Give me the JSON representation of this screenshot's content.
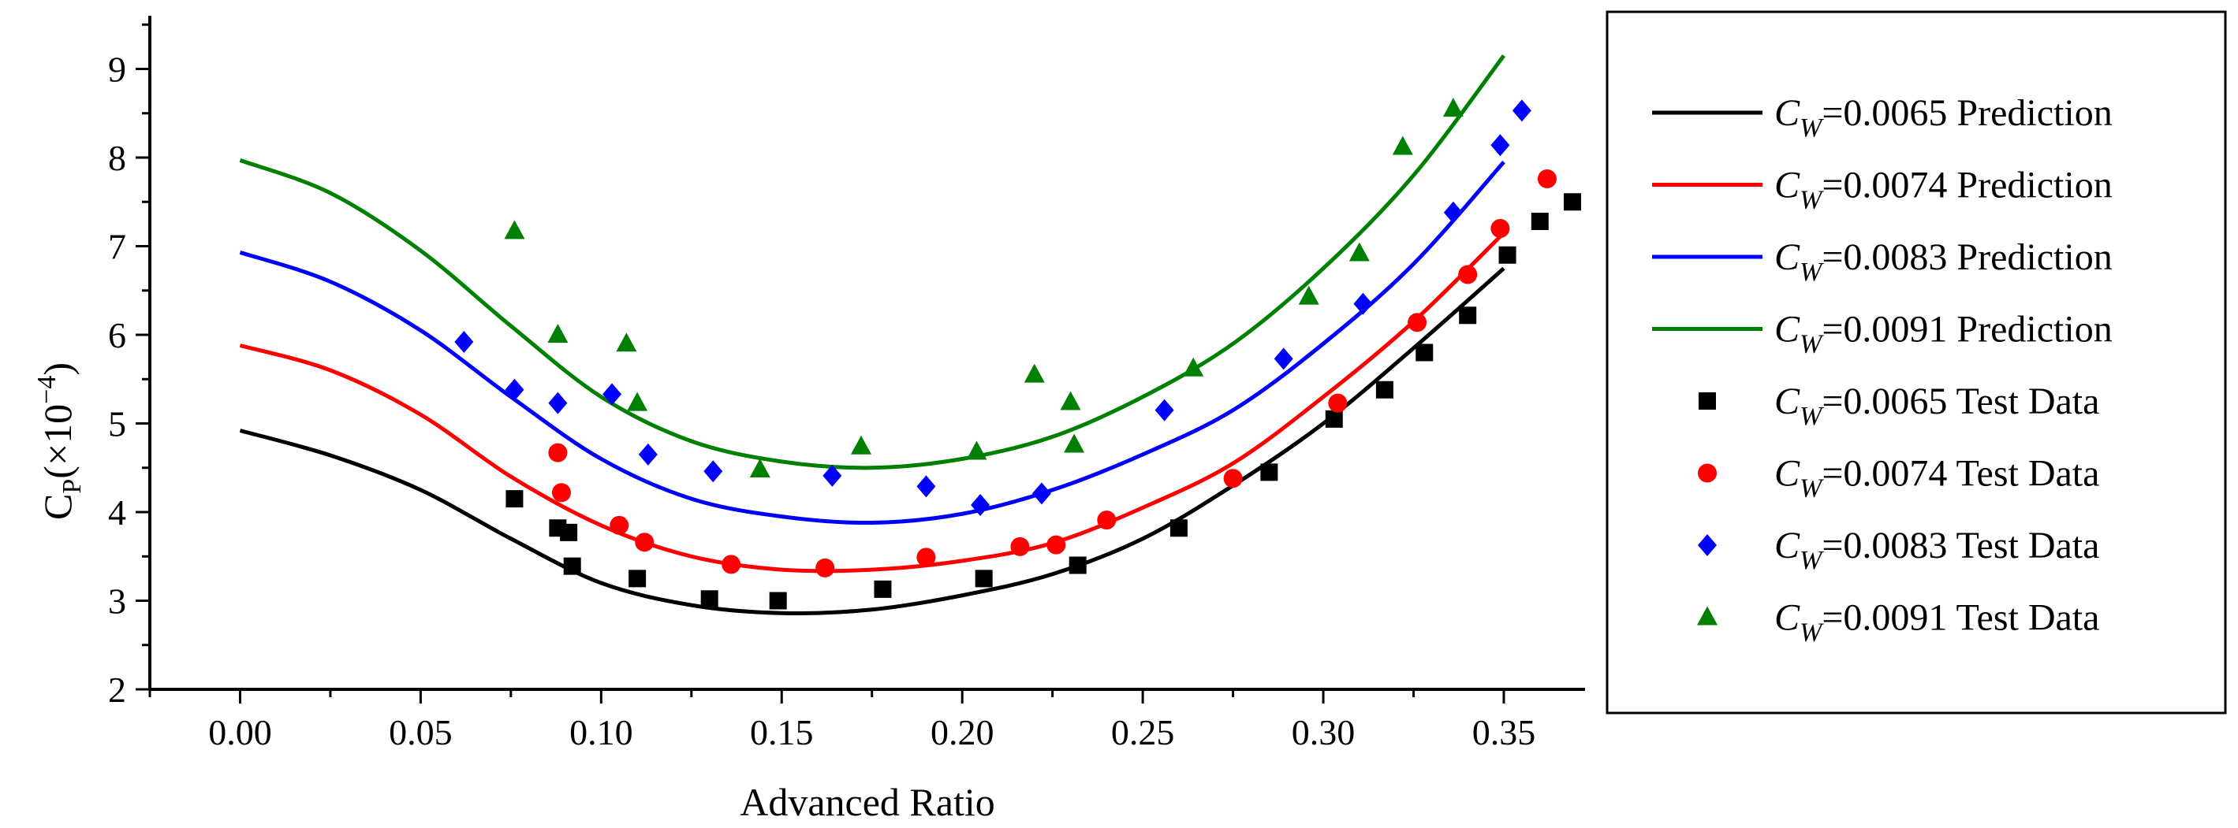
{
  "chart_data": {
    "type": "line",
    "xlabel": "Advanced Ratio",
    "ylabel": {
      "base": "C",
      "sub": "P",
      "unit_prefix": "(×10",
      "unit_exp": "−4",
      "unit_suffix": ")"
    },
    "xlim": [
      -0.025,
      0.3725
    ],
    "ylim": [
      2,
      9.6
    ],
    "xticks": [
      "0.00",
      "0.05",
      "0.10",
      "0.15",
      "0.20",
      "0.25",
      "0.30",
      "0.35"
    ],
    "yticks": [
      "2",
      "3",
      "4",
      "5",
      "6",
      "7",
      "8",
      "9"
    ],
    "grid": false,
    "legend_position": "right",
    "predictions": [
      {
        "cw": "0.0065",
        "label": "=0.0065 Prediction",
        "color": "#000000",
        "x": [
          0,
          0.025,
          0.05,
          0.075,
          0.1,
          0.125,
          0.15,
          0.175,
          0.2,
          0.225,
          0.25,
          0.275,
          0.3,
          0.325,
          0.35
        ],
        "y": [
          4.92,
          4.64,
          4.25,
          3.7,
          3.2,
          2.95,
          2.86,
          2.9,
          3.06,
          3.3,
          3.7,
          4.3,
          5.0,
          5.85,
          6.75
        ]
      },
      {
        "cw": "0.0074",
        "label": "=0.0074 Prediction",
        "color": "#ff0000",
        "x": [
          0,
          0.025,
          0.05,
          0.075,
          0.1,
          0.125,
          0.15,
          0.175,
          0.2,
          0.225,
          0.25,
          0.275,
          0.3,
          0.325,
          0.35
        ],
        "y": [
          5.88,
          5.6,
          5.1,
          4.4,
          3.85,
          3.5,
          3.35,
          3.35,
          3.45,
          3.65,
          4.05,
          4.55,
          5.3,
          6.15,
          7.15
        ]
      },
      {
        "cw": "0.0083",
        "label": "=0.0083 Prediction",
        "color": "#0000ff",
        "x": [
          0,
          0.025,
          0.05,
          0.075,
          0.1,
          0.125,
          0.15,
          0.175,
          0.2,
          0.225,
          0.25,
          0.275,
          0.3,
          0.325,
          0.35
        ],
        "y": [
          6.93,
          6.6,
          6.05,
          5.3,
          4.6,
          4.15,
          3.95,
          3.88,
          3.98,
          4.25,
          4.65,
          5.15,
          5.9,
          6.8,
          7.95
        ]
      },
      {
        "cw": "0.0091",
        "label": "=0.0091 Prediction",
        "color": "#008000",
        "x": [
          0,
          0.025,
          0.05,
          0.075,
          0.1,
          0.125,
          0.15,
          0.175,
          0.2,
          0.225,
          0.25,
          0.275,
          0.3,
          0.325,
          0.35
        ],
        "y": [
          7.97,
          7.6,
          6.95,
          6.1,
          5.3,
          4.8,
          4.57,
          4.5,
          4.6,
          4.85,
          5.3,
          5.9,
          6.75,
          7.8,
          9.15
        ]
      }
    ],
    "test_data": [
      {
        "cw": "0.0065",
        "label": "=0.0065 Test Data",
        "color": "#000000",
        "marker": "square",
        "x": [
          0.076,
          0.088,
          0.091,
          0.092,
          0.11,
          0.13,
          0.149,
          0.178,
          0.206,
          0.232,
          0.26,
          0.285,
          0.303,
          0.317,
          0.328,
          0.34,
          0.351,
          0.36,
          0.369
        ],
        "y": [
          4.15,
          3.82,
          3.77,
          3.39,
          3.25,
          3.02,
          3.0,
          3.13,
          3.25,
          3.4,
          3.82,
          4.45,
          5.05,
          5.38,
          5.8,
          6.22,
          6.9,
          7.28,
          7.5
        ]
      },
      {
        "cw": "0.0074",
        "label": "=0.0074 Test Data",
        "color": "#ff0000",
        "marker": "circle",
        "x": [
          0.088,
          0.089,
          0.105,
          0.112,
          0.136,
          0.162,
          0.19,
          0.216,
          0.226,
          0.24,
          0.275,
          0.304,
          0.326,
          0.34,
          0.349,
          0.362
        ],
        "y": [
          4.67,
          4.22,
          3.85,
          3.66,
          3.41,
          3.37,
          3.49,
          3.61,
          3.63,
          3.91,
          4.38,
          5.23,
          6.14,
          6.68,
          7.2,
          7.76
        ]
      },
      {
        "cw": "0.0083",
        "label": "=0.0083 Test Data",
        "color": "#0000ff",
        "marker": "diamond",
        "x": [
          0.062,
          0.076,
          0.088,
          0.103,
          0.113,
          0.131,
          0.164,
          0.19,
          0.205,
          0.222,
          0.256,
          0.289,
          0.311,
          0.336,
          0.349,
          0.355
        ],
        "y": [
          5.92,
          5.38,
          5.23,
          5.33,
          4.65,
          4.46,
          4.41,
          4.29,
          4.08,
          4.21,
          5.15,
          5.73,
          6.35,
          7.38,
          8.14,
          8.53
        ]
      },
      {
        "cw": "0.0091",
        "label": "=0.0091 Test Data",
        "color": "#008000",
        "marker": "triangle",
        "x": [
          0.076,
          0.088,
          0.107,
          0.11,
          0.144,
          0.172,
          0.204,
          0.22,
          0.23,
          0.231,
          0.264,
          0.296,
          0.31,
          0.322,
          0.336
        ],
        "y": [
          7.17,
          6.0,
          5.9,
          5.23,
          4.48,
          4.74,
          4.68,
          5.55,
          5.24,
          4.76,
          5.62,
          6.43,
          6.92,
          8.12,
          8.55
        ]
      }
    ]
  },
  "legend": {
    "symbol": "C",
    "subscript": "W"
  }
}
